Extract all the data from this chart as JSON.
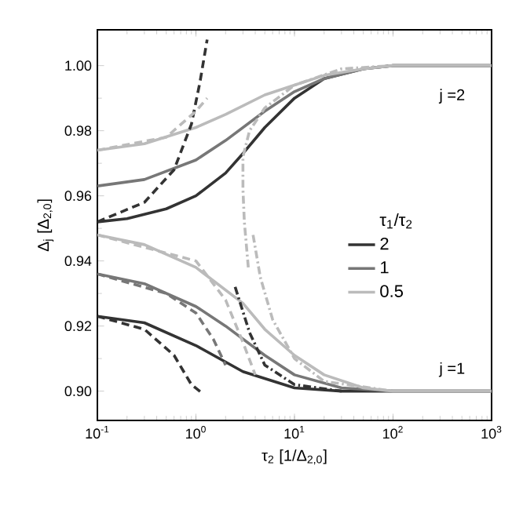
{
  "chart_data": {
    "type": "line",
    "xlabel": "τ$_{2}$ [1/Δ$_{2,0}$]",
    "ylabel": "Δ$_{j}$ [Δ$_{2,0}$]",
    "legend_title": "τ$_{1}$/τ$_{2}$",
    "log": "x",
    "legend": "right",
    "grid": false,
    "xlim": [
      0.1,
      1000
    ],
    "ylim": [
      0.891,
      1.011
    ],
    "xticks": [
      {
        "value": 0.1,
        "label": "10$^{-1}$"
      },
      {
        "value": 1,
        "label": "10$^{0}$"
      },
      {
        "value": 10,
        "label": "10$^{1}$"
      },
      {
        "value": 100,
        "label": "10$^{2}$"
      },
      {
        "value": 1000,
        "label": "10$^{3}$"
      }
    ],
    "yticks": [
      {
        "value": 0.9,
        "label": "0.90"
      },
      {
        "value": 0.92,
        "label": "0.92"
      },
      {
        "value": 0.94,
        "label": "0.94"
      },
      {
        "value": 0.96,
        "label": "0.96"
      },
      {
        "value": 0.98,
        "label": "0.98"
      },
      {
        "value": 1.0,
        "label": "1.00"
      }
    ],
    "annotations": [
      "j =2",
      "j =1"
    ],
    "series": [
      {
        "name": "2",
        "color": "#333333",
        "line_style": "solid",
        "x": [
          0.1,
          0.2,
          0.5,
          1,
          2,
          3,
          5,
          10,
          20,
          50,
          100,
          1000
        ],
        "values": [
          0.952,
          0.953,
          0.956,
          0.96,
          0.967,
          0.973,
          0.981,
          0.99,
          0.996,
          0.999,
          1.0,
          1.0
        ]
      },
      {
        "name": "1",
        "color": "#777777",
        "line_style": "solid",
        "x": [
          0.1,
          0.3,
          1,
          2,
          5,
          10,
          20,
          50,
          100,
          1000
        ],
        "values": [
          0.963,
          0.965,
          0.971,
          0.977,
          0.986,
          0.992,
          0.996,
          0.999,
          1.0,
          1.0
        ]
      },
      {
        "name": "0.5",
        "color": "#bbbbbb",
        "line_style": "solid",
        "x": [
          0.1,
          0.3,
          1,
          2,
          5,
          10,
          20,
          50,
          100,
          1000
        ],
        "values": [
          0.974,
          0.976,
          0.981,
          0.985,
          0.991,
          0.994,
          0.997,
          0.999,
          1.0,
          1.0
        ]
      },
      {
        "color": "#333333",
        "line_style": "solid",
        "x": [
          0.1,
          0.3,
          1,
          3,
          10,
          30,
          1000
        ],
        "values": [
          0.923,
          0.921,
          0.914,
          0.906,
          0.901,
          0.9,
          0.9
        ]
      },
      {
        "color": "#777777",
        "line_style": "solid",
        "x": [
          0.1,
          0.3,
          1,
          2,
          5,
          10,
          30,
          100,
          1000
        ],
        "values": [
          0.936,
          0.933,
          0.926,
          0.92,
          0.911,
          0.905,
          0.901,
          0.9,
          0.9
        ]
      },
      {
        "color": "#bbbbbb",
        "line_style": "solid",
        "x": [
          0.1,
          0.3,
          1,
          3,
          5,
          10,
          20,
          50,
          100,
          1000
        ],
        "values": [
          0.948,
          0.945,
          0.938,
          0.927,
          0.919,
          0.911,
          0.905,
          0.901,
          0.9,
          0.9
        ]
      },
      {
        "color": "#333333",
        "line_style": "dashed",
        "x": [
          0.1,
          0.3,
          0.6,
          0.9,
          1.1,
          1.3
        ],
        "values": [
          0.952,
          0.958,
          0.968,
          0.982,
          0.995,
          1.008
        ]
      },
      {
        "color": "#333333",
        "line_style": "dashed",
        "x": [
          0.1,
          0.3,
          0.6,
          0.9,
          1.2
        ],
        "values": [
          0.923,
          0.919,
          0.911,
          0.902,
          0.899
        ]
      },
      {
        "color": "#777777",
        "line_style": "dashed",
        "x": [
          0.1,
          0.5,
          1,
          1.5,
          2
        ],
        "values": [
          0.936,
          0.93,
          0.924,
          0.916,
          0.908
        ]
      },
      {
        "color": "#bbbbbb",
        "line_style": "dashed",
        "x": [
          0.1,
          0.5,
          1,
          1.3
        ],
        "values": [
          0.974,
          0.978,
          0.986,
          0.99
        ]
      },
      {
        "color": "#bbbbbb",
        "line_style": "dashed",
        "x": [
          0.1,
          1,
          2,
          3,
          4
        ],
        "values": [
          0.948,
          0.94,
          0.928,
          0.915,
          0.905
        ]
      },
      {
        "color": "#bbbbbb",
        "line_style": "dashdot",
        "x": [
          3.4,
          3.1,
          3.0,
          3.0,
          3.5,
          5,
          10,
          30,
          100
        ],
        "values": [
          0.938,
          0.952,
          0.962,
          0.972,
          0.98,
          0.987,
          0.994,
          0.999,
          1.0
        ]
      },
      {
        "color": "#bbbbbb",
        "line_style": "dashdot",
        "x": [
          3.8,
          4.5,
          6,
          10,
          20,
          100
        ],
        "values": [
          0.948,
          0.935,
          0.922,
          0.91,
          0.903,
          0.9
        ]
      },
      {
        "color": "#333333",
        "line_style": "dashdot",
        "x": [
          2.5,
          3.5,
          5,
          10,
          30
        ],
        "values": [
          0.932,
          0.918,
          0.908,
          0.902,
          0.9
        ]
      }
    ]
  }
}
